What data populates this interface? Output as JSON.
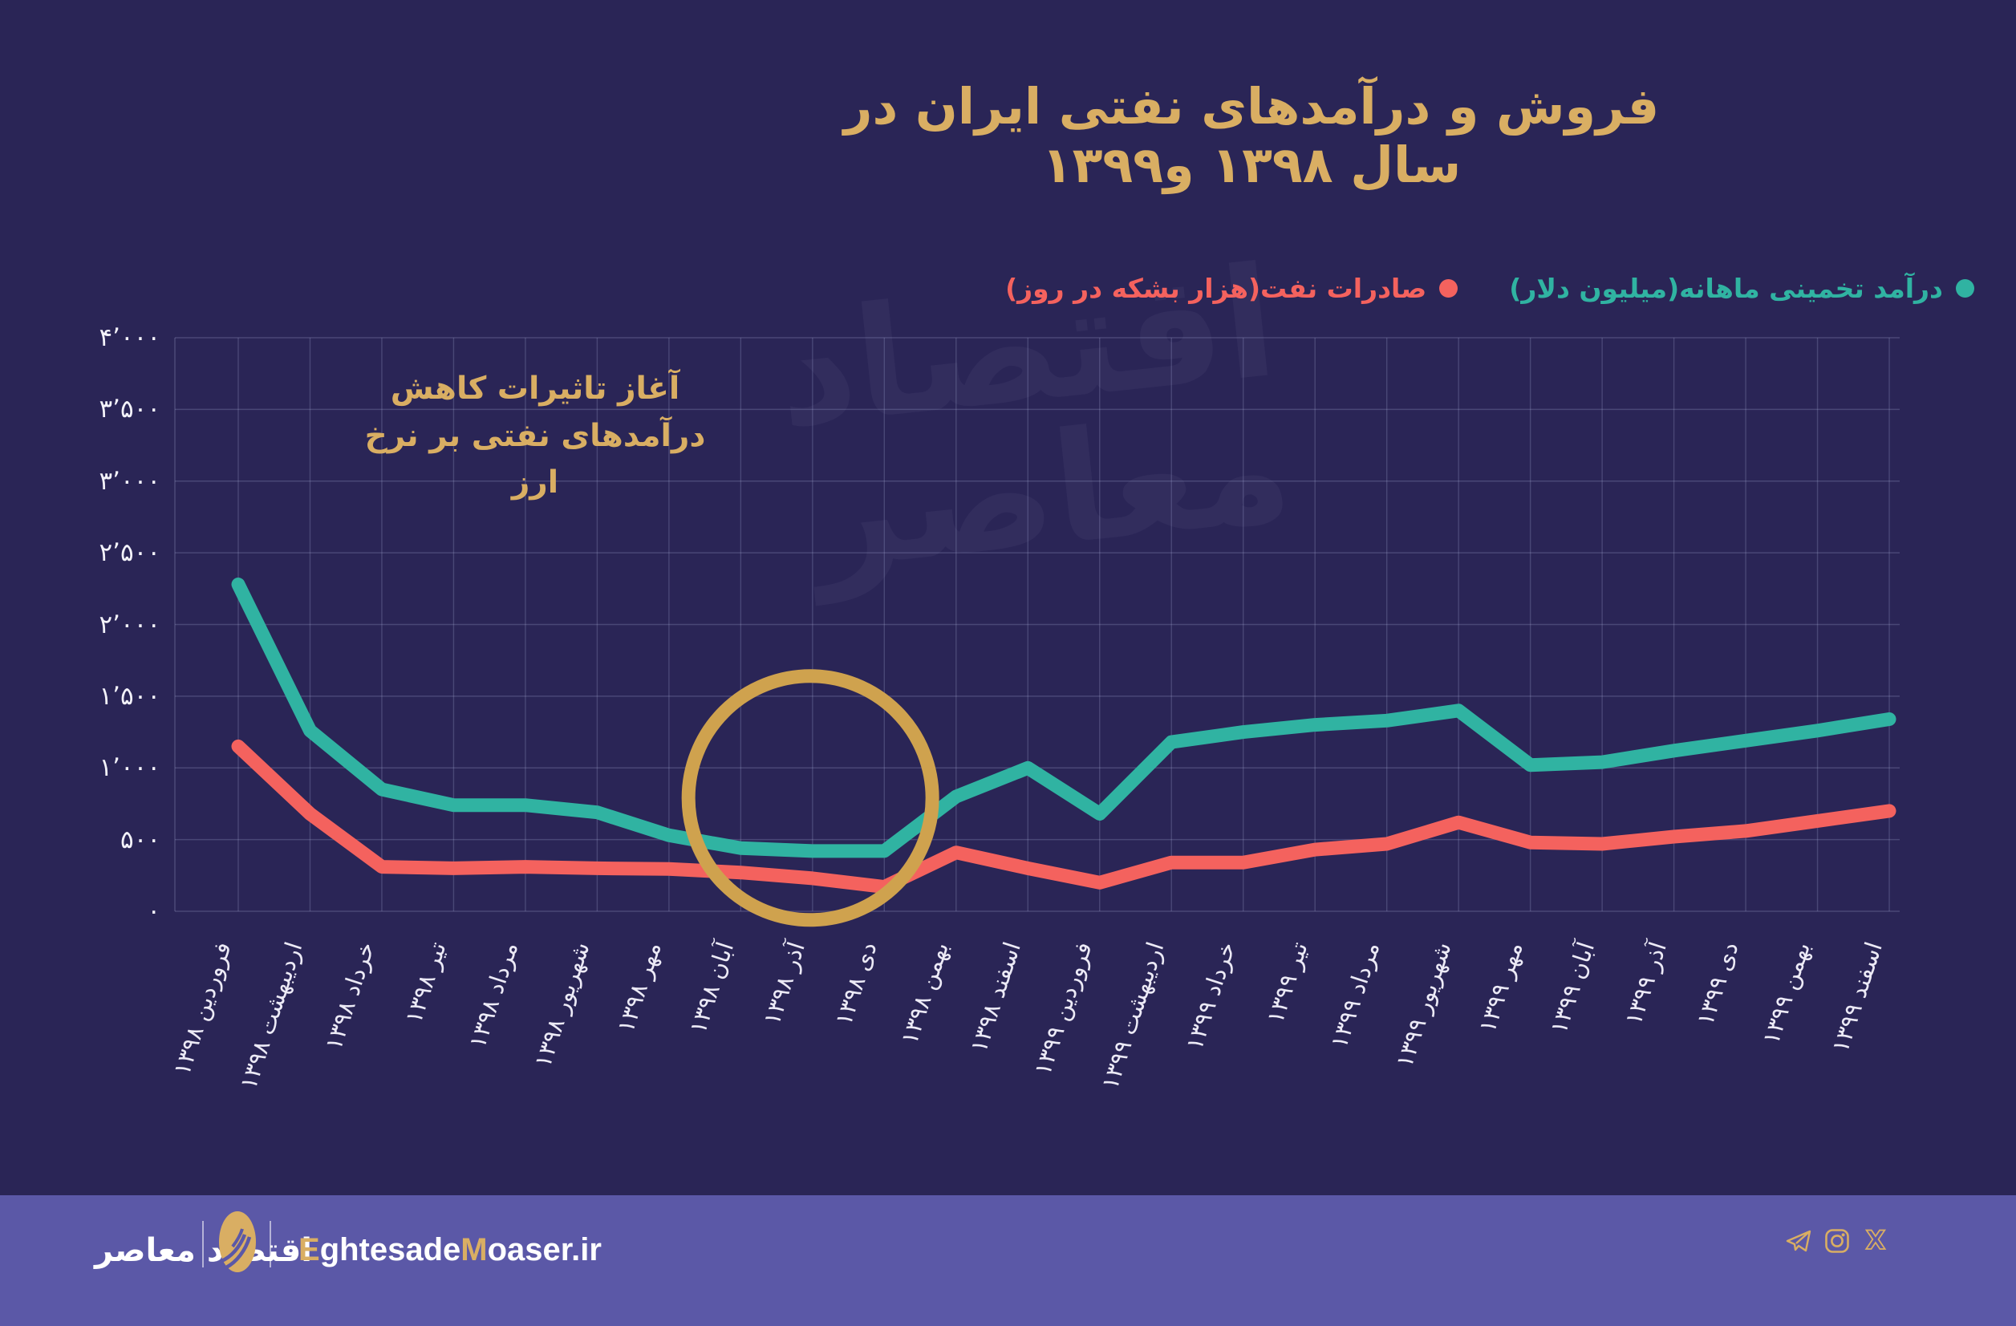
{
  "title": "فروش و درآمدهای نفتی ایران در سال ۱۳۹۸ و۱۳۹۹",
  "colors": {
    "background": "#2a2556",
    "footer_background": "#5b58a7",
    "gold": "#d9ae63",
    "circle_gold": "#cfa24e",
    "teal": "#30b3a2",
    "red": "#f4625e",
    "grid": "rgba(175,178,220,0.24)"
  },
  "legend": {
    "revenue": {
      "label": "درآمد تخمینی ماهانه(میلیون دلار)"
    },
    "exports": {
      "label": "صادرات نفت(هزار بشکه در روز)"
    }
  },
  "annotation": {
    "line1": "آغاز تاثیرات کاهش",
    "line2": "درآمدهای نفتی بر نرخ ارز"
  },
  "watermark": "اقتصاد معاصر",
  "chart_data": {
    "type": "line",
    "categories": [
      "فروردین ۱۳۹۸",
      "اردیبهشت ۱۳۹۸",
      "خرداد ۱۳۹۸",
      "تیر ۱۳۹۸",
      "مرداد ۱۳۹۸",
      "شهریور ۱۳۹۸",
      "مهر ۱۳۹۸",
      "آبان ۱۳۹۸",
      "آذر ۱۳۹۸",
      "دی ۱۳۹۸",
      "بهمن ۱۳۹۸",
      "اسفند ۱۳۹۸",
      "فروردین ۱۳۹۹",
      "اردیبهشت ۱۳۹۹",
      "خرداد ۱۳۹۹",
      "تیر ۱۳۹۹",
      "مرداد ۱۳۹۹",
      "شهریور ۱۳۹۹",
      "مهر ۱۳۹۹",
      "آبان ۱۳۹۹",
      "آذر ۱۳۹۹",
      "دی ۱۳۹۹",
      "بهمن ۱۳۹۹",
      "اسفند ۱۳۹۹"
    ],
    "series": [
      {
        "name": "درآمد تخمینی ماهانه (میلیون دلار)",
        "color_key": "teal",
        "values": [
          2280,
          1260,
          850,
          740,
          740,
          690,
          530,
          440,
          420,
          420,
          800,
          1000,
          680,
          1180,
          1250,
          1300,
          1330,
          1400,
          1020,
          1040,
          1120,
          1190,
          1260,
          1340
        ]
      },
      {
        "name": "صادرات نفت (هزار بشکه در روز)",
        "color_key": "red",
        "values": [
          1150,
          680,
          310,
          300,
          310,
          300,
          295,
          270,
          230,
          170,
          410,
          300,
          200,
          340,
          340,
          430,
          470,
          620,
          480,
          470,
          520,
          560,
          630,
          700
        ]
      }
    ],
    "ylim": [
      0,
      4000
    ],
    "ytick_step": 500,
    "ytick_labels_top_down": [
      "۴٬۰۰۰",
      "۳٬۵۰۰",
      "۳٬۰۰۰",
      "۲٬۵۰۰",
      "۲٬۰۰۰",
      "۱٬۵۰۰",
      "۱٬۰۰۰",
      "۵۰۰",
      "۰"
    ],
    "grid": true,
    "legend_position": "top-right",
    "highlight_circle": {
      "category_index": 8,
      "value": 790,
      "radius_px": 152
    }
  },
  "footer": {
    "brand_fa": "اقتصاد معاصر",
    "brand_en_parts": [
      {
        "text": "E",
        "tone": "gold"
      },
      {
        "text": "ghtesade",
        "tone": "white"
      },
      {
        "text": "M",
        "tone": "gold"
      },
      {
        "text": "oaser.ir",
        "tone": "white"
      }
    ],
    "socials": [
      "telegram-icon",
      "instagram-icon",
      "x-icon"
    ]
  }
}
